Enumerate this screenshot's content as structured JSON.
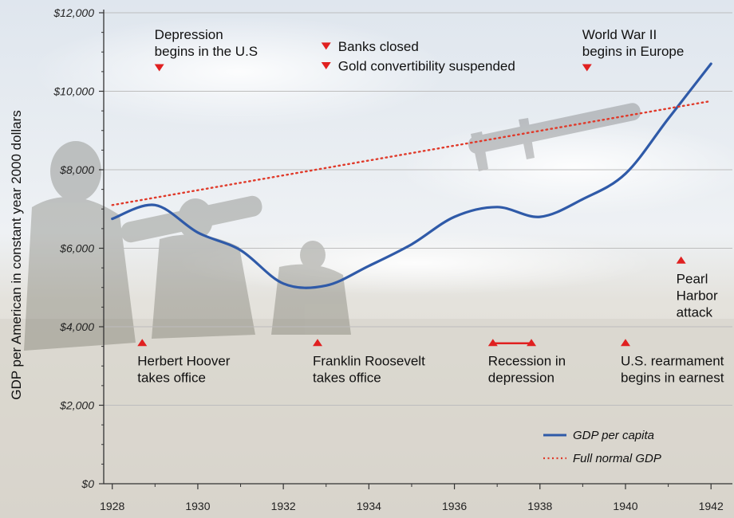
{
  "chart_data": {
    "type": "line",
    "ylabel": "GDP per American in constant year 2000 dollars",
    "xlabel": "",
    "xlim": [
      1927.8,
      1942.5
    ],
    "ylim": [
      0,
      12000
    ],
    "grid": true,
    "legend_placement": "bottom-right",
    "yticks": [
      0,
      2000,
      4000,
      6000,
      8000,
      10000,
      12000
    ],
    "ytick_labels": [
      "$0",
      "$2,000",
      "$4,000",
      "$6,000",
      "$8,000",
      "$10,000",
      "$12,000"
    ],
    "xticks": [
      1928,
      1930,
      1932,
      1934,
      1936,
      1938,
      1940,
      1942
    ],
    "xtick_labels": [
      "1928",
      "1930",
      "1932",
      "1934",
      "1936",
      "1938",
      "1940",
      "1942"
    ],
    "series": [
      {
        "name": "GDP per capita",
        "style": "solid",
        "color": "#2f5aa8",
        "x": [
          1928,
          1929,
          1930,
          1931,
          1932,
          1933,
          1934,
          1935,
          1936,
          1937,
          1938,
          1939,
          1940,
          1941,
          1942
        ],
        "values": [
          6750,
          7100,
          6400,
          5950,
          5100,
          5050,
          5550,
          6100,
          6800,
          7050,
          6800,
          7250,
          7900,
          9300,
          10700
        ]
      },
      {
        "name": "Full normal GDP",
        "style": "dotted",
        "color": "#e03a2a",
        "x": [
          1928,
          1942
        ],
        "values": [
          7100,
          9750
        ]
      }
    ],
    "annotations": [
      {
        "lines": [
          "Depression",
          "begins in the U.S"
        ],
        "x": 1929.1,
        "y": 10600,
        "marker": "down"
      },
      {
        "lines": [
          "Banks closed"
        ],
        "x": 1933.0,
        "y": 11150,
        "marker": "down"
      },
      {
        "lines": [
          "Gold convertibility suspended"
        ],
        "x": 1933.0,
        "y": 10650,
        "marker": "down"
      },
      {
        "lines": [
          "World War II",
          "begins in Europe"
        ],
        "x": 1939.1,
        "y": 10600,
        "marker": "down"
      },
      {
        "lines": [
          "Pearl",
          "Harbor",
          "attack"
        ],
        "x": 1941.3,
        "y": 5700,
        "marker": "up"
      },
      {
        "lines": [
          "Herbert Hoover",
          "takes office"
        ],
        "x": 1928.7,
        "y": 3600,
        "marker": "up"
      },
      {
        "lines": [
          "Franklin Roosevelt",
          "takes office"
        ],
        "x": 1932.8,
        "y": 3600,
        "marker": "up"
      },
      {
        "lines": [
          "Recession in",
          "depression"
        ],
        "x": 1936.9,
        "x_end": 1937.8,
        "y": 3600,
        "marker": "up-range"
      },
      {
        "lines": [
          "U.S. rearmament",
          "begins in earnest"
        ],
        "x": 1940.0,
        "y": 3600,
        "marker": "up"
      }
    ],
    "annotation_marker_color": "#e02020"
  },
  "icons": {
    "background": "photo-soldiers-with-missile-launcher",
    "marker_down": "red-down-triangle-icon",
    "marker_up": "red-up-triangle-icon"
  },
  "colors": {
    "axis": "#333333",
    "grid": "#bdbdbd"
  }
}
